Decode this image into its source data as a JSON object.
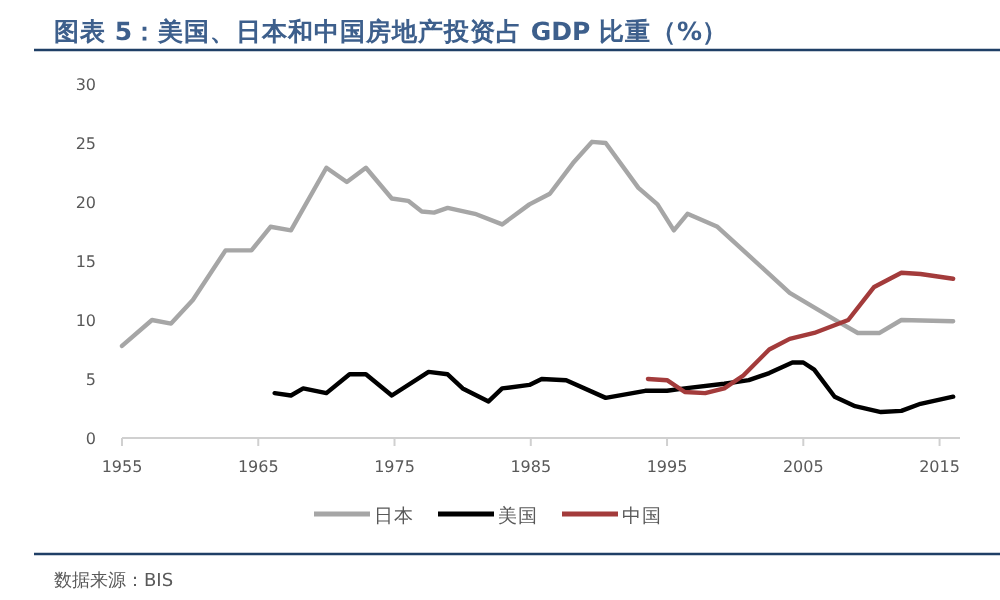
{
  "chart_data": {
    "type": "line",
    "title": "图表 5：美国、日本和中国房地产投资占 GDP 比重（%）",
    "annotations": [
      "数据来源：BIS"
    ],
    "xlim": [
      1955,
      2016.5
    ],
    "xticks": [
      1955,
      1965,
      1975,
      1985,
      1995,
      2005,
      2015
    ],
    "ylim": [
      0,
      30
    ],
    "yticks": [
      0,
      5,
      10,
      15,
      20,
      25,
      30
    ],
    "legend": "bottom",
    "series": [
      {
        "name": "日本",
        "color": "#a6a6a6",
        "x": [
          1955,
          1957.2,
          1958.6,
          1960.2,
          1962.6,
          1964.5,
          1965.9,
          1967.4,
          1970,
          1971.5,
          1972.9,
          1974.8,
          1976,
          1977,
          1977.9,
          1978.9,
          1980.9,
          1982.9,
          1984.9,
          1986.4,
          1988.1,
          1989.5,
          1990.5,
          1992.9,
          1994.3,
          1995.5,
          1996.5,
          1998.7,
          2004,
          2007.8,
          2009,
          2010.6,
          2012.2,
          2016
        ],
        "values": [
          7.8,
          10.0,
          9.7,
          11.7,
          15.9,
          15.9,
          17.9,
          17.6,
          22.9,
          21.7,
          22.9,
          20.3,
          20.1,
          19.2,
          19.1,
          19.5,
          19.0,
          18.1,
          19.8,
          20.7,
          23.3,
          25.1,
          25.0,
          21.2,
          19.8,
          17.6,
          19.0,
          17.9,
          12.3,
          9.7,
          8.9,
          8.9,
          10.0,
          9.9
        ]
      },
      {
        "name": "美国",
        "color": "#000000",
        "x": [
          1966.2,
          1967.4,
          1968.3,
          1970,
          1971.7,
          1972.9,
          1974.8,
          1977.5,
          1978.9,
          1980,
          1981.9,
          1982.9,
          1984.9,
          1985.8,
          1987.6,
          1990.5,
          1993.4,
          1995,
          1996.3,
          1999.2,
          2001,
          2002.5,
          2004.2,
          2005,
          2005.8,
          2007.3,
          2008.8,
          2010.7,
          2012.2,
          2013.6,
          2016
        ],
        "values": [
          3.8,
          3.6,
          4.2,
          3.8,
          5.4,
          5.4,
          3.6,
          5.6,
          5.4,
          4.2,
          3.1,
          4.2,
          4.5,
          5.0,
          4.9,
          3.4,
          4.0,
          4.0,
          4.2,
          4.6,
          4.9,
          5.5,
          6.4,
          6.4,
          5.8,
          3.5,
          2.7,
          2.2,
          2.3,
          2.9,
          3.5
        ]
      },
      {
        "name": "中国",
        "color": "#a33b3b",
        "x": [
          1993.6,
          1995,
          1996.3,
          1997.8,
          1999.2,
          2000.6,
          2002.5,
          2004,
          2005.8,
          2008.3,
          2010.2,
          2012.2,
          2013.6,
          2016
        ],
        "values": [
          5.0,
          4.9,
          3.9,
          3.8,
          4.2,
          5.3,
          7.5,
          8.4,
          8.9,
          10.0,
          12.8,
          14.0,
          13.9,
          13.5
        ]
      }
    ]
  }
}
